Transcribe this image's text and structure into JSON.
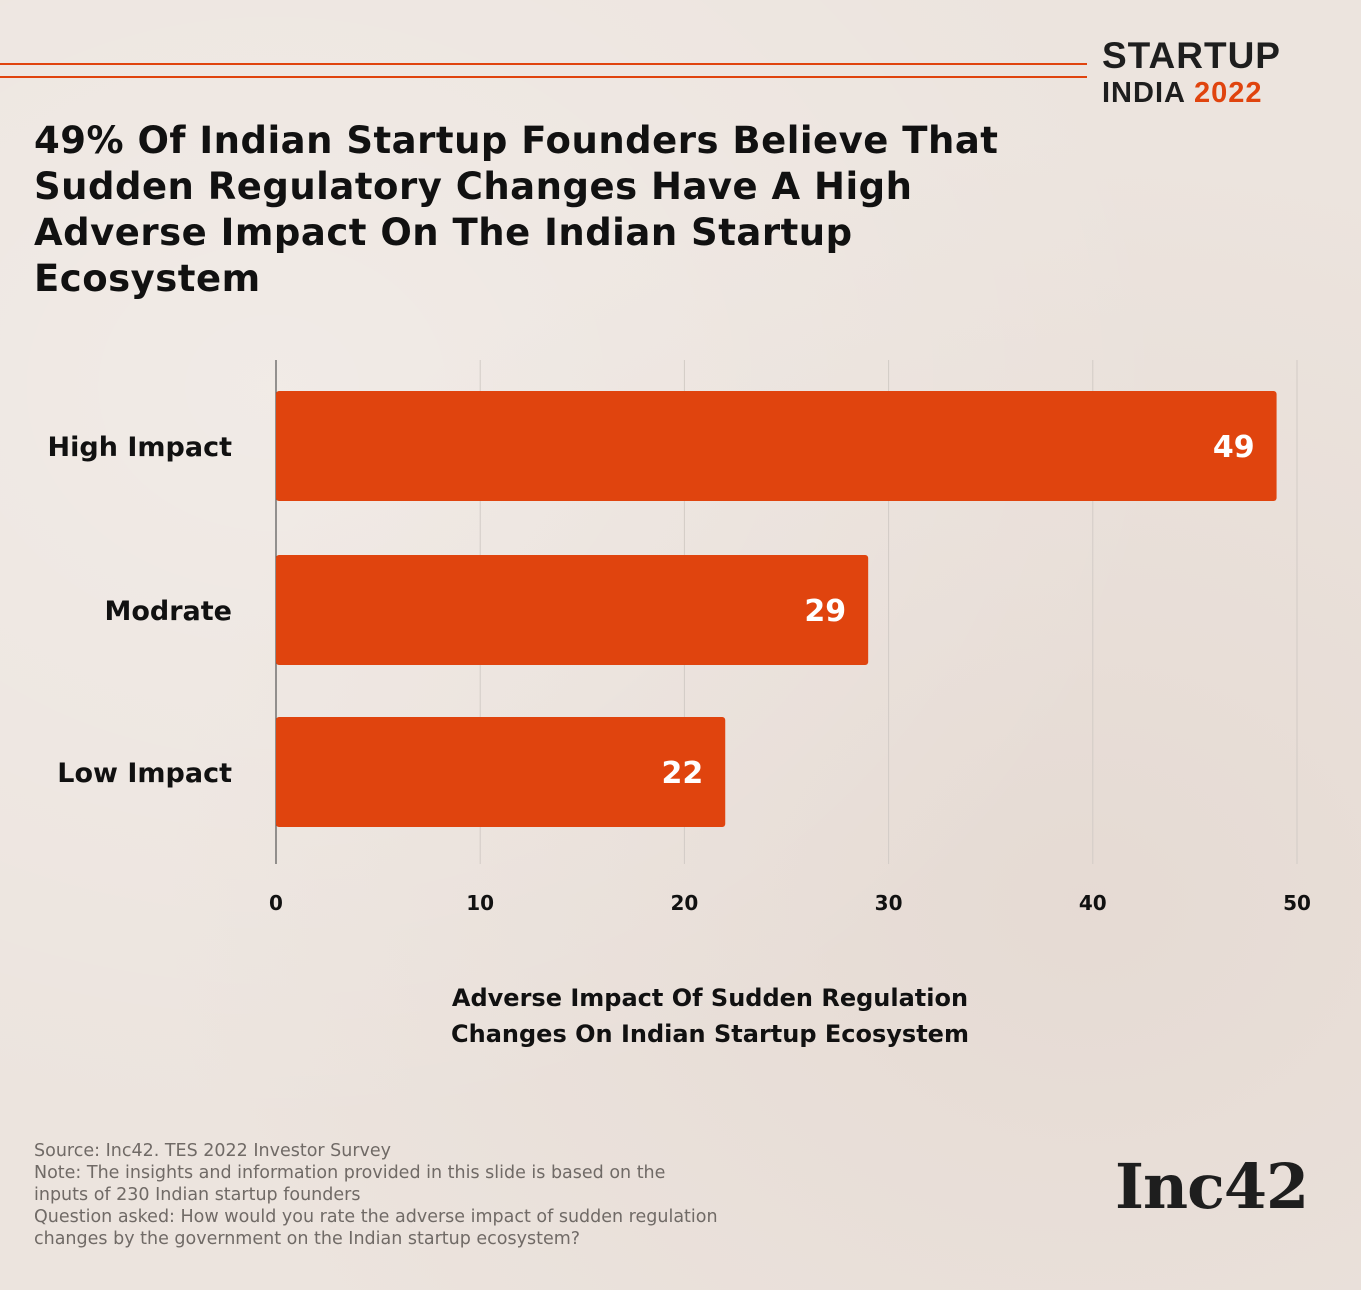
{
  "brand": {
    "line1": "STARTUP",
    "line2_text": "INDIA",
    "line2_year": "2022",
    "accent_color": "#e0440e"
  },
  "title": "49% Of Indian Startup Founders Believe That Sudden Regulatory Changes Have A High Adverse Impact On The Indian Startup Ecosystem",
  "chart_data": {
    "type": "bar",
    "orientation": "horizontal",
    "title": "49% Of Indian Startup Founders Believe That Sudden Regulatory Changes Have A High Adverse Impact On The Indian Startup Ecosystem",
    "categories": [
      "High Impact",
      "Modrate",
      "Low Impact"
    ],
    "values": [
      49,
      29,
      22
    ],
    "data_labels": [
      "49",
      "29",
      "22"
    ],
    "xlabel": "Adverse Impact Of Sudden Regulation Changes On Indian Startup Ecosystem",
    "ylabel": "",
    "xlim": [
      0,
      50
    ],
    "xticks": [
      0,
      10,
      20,
      30,
      40,
      50
    ],
    "xtick_labels": [
      "0",
      "10",
      "20",
      "30",
      "40",
      "50"
    ],
    "grid": true,
    "bar_color": "#e0440e",
    "legend": "none"
  },
  "xlabel_lines": [
    "Adverse Impact Of Sudden Regulation",
    "Changes On Indian Startup Ecosystem"
  ],
  "notes": {
    "source": "Source: Inc42. TES 2022 Investor Survey",
    "note_line1": "Note: The insights and information provided in this slide is based on the",
    "note_line2": "inputs of 230 Indian startup founders",
    "question_line1": "Question asked: How would you rate the adverse impact of sudden regulation",
    "question_line2": "changes by the government on the Indian startup ecosystem?"
  },
  "logo": {
    "text": "Inc42"
  }
}
